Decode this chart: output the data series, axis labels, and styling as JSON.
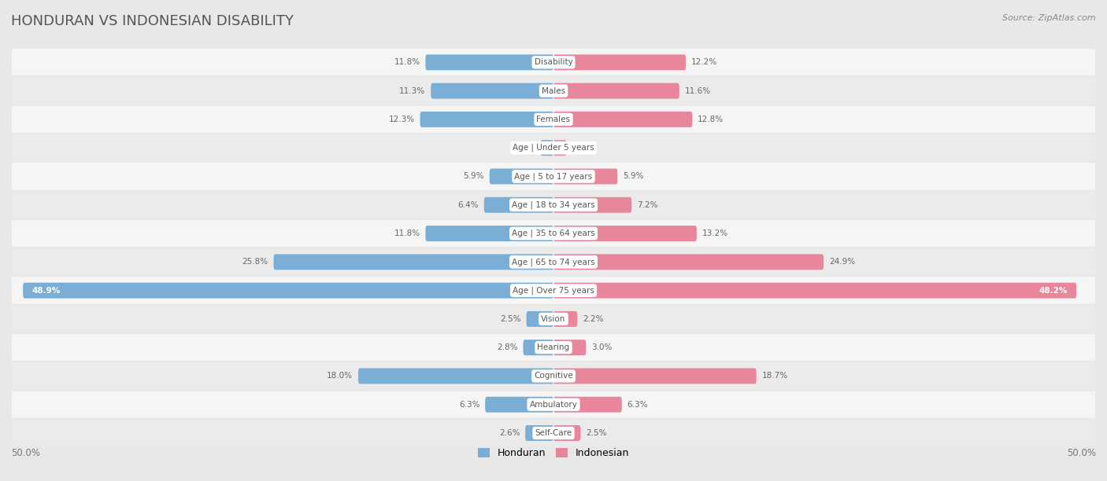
{
  "title": "HONDURAN VS INDONESIAN DISABILITY",
  "source": "Source: ZipAtlas.com",
  "categories": [
    "Disability",
    "Males",
    "Females",
    "Age | Under 5 years",
    "Age | 5 to 17 years",
    "Age | 18 to 34 years",
    "Age | 35 to 64 years",
    "Age | 65 to 74 years",
    "Age | Over 75 years",
    "Vision",
    "Hearing",
    "Cognitive",
    "Ambulatory",
    "Self-Care"
  ],
  "honduran": [
    11.8,
    11.3,
    12.3,
    1.2,
    5.9,
    6.4,
    11.8,
    25.8,
    48.9,
    2.5,
    2.8,
    18.0,
    6.3,
    2.6
  ],
  "indonesian": [
    12.2,
    11.6,
    12.8,
    1.2,
    5.9,
    7.2,
    13.2,
    24.9,
    48.2,
    2.2,
    3.0,
    18.7,
    6.3,
    2.5
  ],
  "max_val": 50.0,
  "honduran_color": "#7aaed4",
  "indonesian_color": "#e8879c",
  "bg_color": "#e8e8e8",
  "row_bg_color": "#f5f5f5",
  "row_alt_bg": "#ebebeb",
  "bar_height": 0.55,
  "label_bg": "#ffffff",
  "legend_honduran": "Honduran",
  "legend_indonesian": "Indonesian",
  "over75_index": 8
}
